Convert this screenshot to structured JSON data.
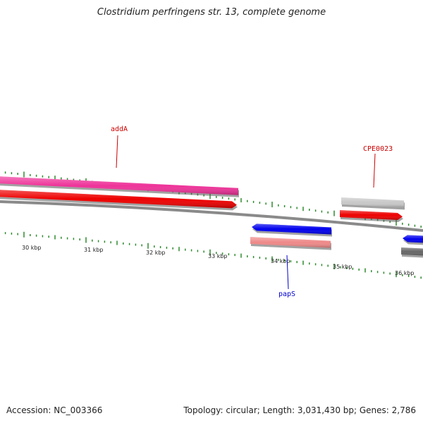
{
  "title": "Clostridium perfringens str. 13, complete genome",
  "footer": {
    "accession": "Accession: NC_003366",
    "summary": "Topology: circular; Length: 3,031,430 bp; Genes: 2,786"
  },
  "colors": {
    "backbone": "#8a8a8a",
    "tick": "#2e8b2e",
    "label_forward": "#cc0000",
    "label_reverse": "#0000cc"
  },
  "ticks": [
    {
      "label": "30 kbp"
    },
    {
      "label": "31 kbp"
    },
    {
      "label": "32 kbp"
    },
    {
      "label": "33 kbp"
    },
    {
      "label": "34 kbp"
    },
    {
      "label": "35 kbp"
    },
    {
      "label": "36 kbp"
    }
  ],
  "genes": [
    {
      "name": "addA",
      "strand": "+",
      "color": "#ee3399",
      "labeled": true
    },
    {
      "name": "",
      "strand": "+",
      "color": "#ee0000",
      "labeled": false
    },
    {
      "name": "CPE0023",
      "strand": "+",
      "color": "#c8c8c8",
      "labeled": true
    },
    {
      "name": "",
      "strand": "+",
      "color": "#ee0000",
      "labeled": false
    },
    {
      "name": "papS",
      "strand": "-",
      "color": "#0000ee",
      "labeled": true
    },
    {
      "name": "",
      "strand": "-",
      "color": "#ee8888",
      "labeled": false
    },
    {
      "name": "",
      "strand": "-",
      "color": "#0000ee",
      "labeled": false
    },
    {
      "name": "",
      "strand": "-",
      "color": "#666666",
      "labeled": false
    }
  ]
}
